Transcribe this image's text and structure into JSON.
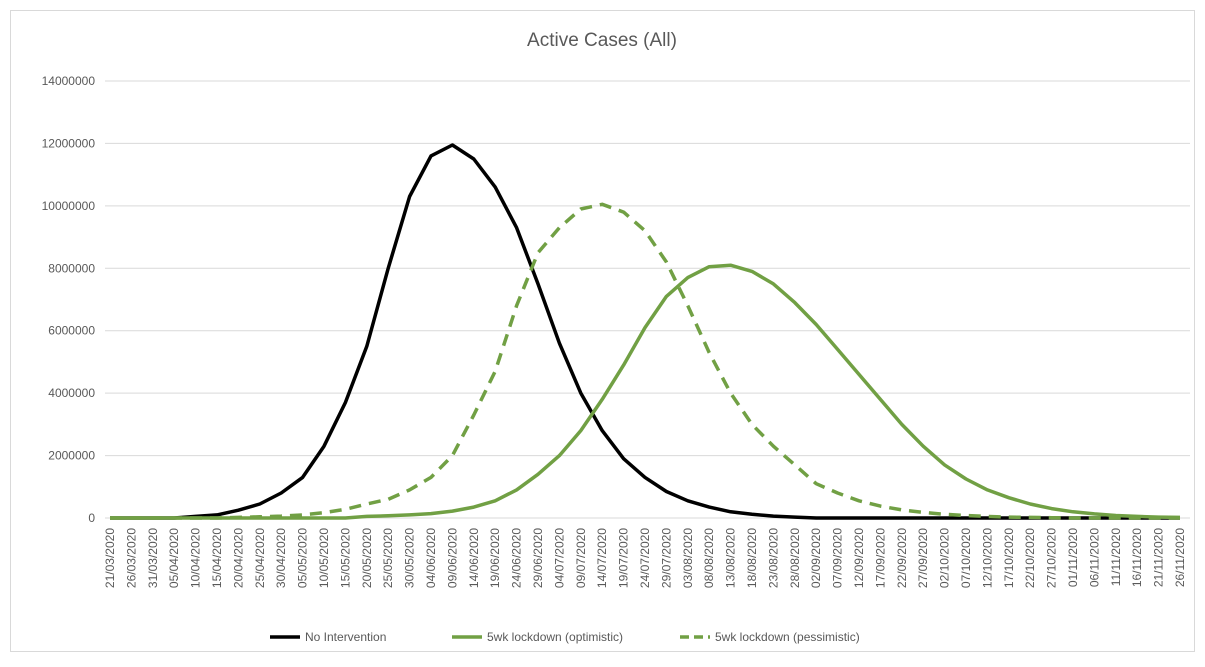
{
  "chart_data": {
    "type": "line",
    "title": "Active Cases (All)",
    "categories": [
      "21/03/2020",
      "26/03/2020",
      "31/03/2020",
      "05/04/2020",
      "10/04/2020",
      "15/04/2020",
      "20/04/2020",
      "25/04/2020",
      "30/04/2020",
      "05/05/2020",
      "10/05/2020",
      "15/05/2020",
      "20/05/2020",
      "25/05/2020",
      "30/05/2020",
      "04/06/2020",
      "09/06/2020",
      "14/06/2020",
      "19/06/2020",
      "24/06/2020",
      "29/06/2020",
      "04/07/2020",
      "09/07/2020",
      "14/07/2020",
      "19/07/2020",
      "24/07/2020",
      "29/07/2020",
      "03/08/2020",
      "08/08/2020",
      "13/08/2020",
      "18/08/2020",
      "23/08/2020",
      "28/08/2020",
      "02/09/2020",
      "07/09/2020",
      "12/09/2020",
      "17/09/2020",
      "22/09/2020",
      "27/09/2020",
      "02/10/2020",
      "07/10/2020",
      "12/10/2020",
      "17/10/2020",
      "22/10/2020",
      "27/10/2020",
      "01/11/2020",
      "06/11/2020",
      "11/11/2020",
      "16/11/2020",
      "21/11/2020",
      "26/11/2020"
    ],
    "series": [
      {
        "name": "No Intervention",
        "color": "#000000",
        "style": "solid",
        "values": [
          0,
          0,
          0,
          0,
          50000,
          100000,
          250000,
          450000,
          800000,
          1300000,
          2300000,
          3700000,
          5500000,
          8000000,
          10300000,
          11600000,
          11950000,
          11500000,
          10600000,
          9300000,
          7500000,
          5600000,
          4000000,
          2800000,
          1900000,
          1300000,
          850000,
          550000,
          350000,
          200000,
          120000,
          60000,
          30000,
          0,
          0,
          0,
          0,
          0,
          0,
          0,
          0,
          0,
          0,
          0,
          0,
          0,
          0,
          0,
          0,
          0,
          0
        ]
      },
      {
        "name": "5wk lockdown (optimistic)",
        "color": "#71a044",
        "style": "solid",
        "values": [
          0,
          0,
          0,
          0,
          0,
          0,
          0,
          0,
          0,
          0,
          0,
          0,
          50000,
          70000,
          100000,
          140000,
          220000,
          350000,
          550000,
          900000,
          1400000,
          2000000,
          2800000,
          3800000,
          4900000,
          6100000,
          7100000,
          7700000,
          8050000,
          8100000,
          7900000,
          7500000,
          6900000,
          6200000,
          5400000,
          4600000,
          3800000,
          3000000,
          2300000,
          1700000,
          1250000,
          900000,
          650000,
          450000,
          300000,
          200000,
          130000,
          80000,
          50000,
          30000,
          20000
        ]
      },
      {
        "name": "5wk lockdown (pessimistic)",
        "color": "#71a044",
        "style": "dashed",
        "values": [
          0,
          0,
          0,
          0,
          0,
          0,
          20000,
          40000,
          60000,
          100000,
          170000,
          280000,
          450000,
          600000,
          900000,
          1300000,
          2000000,
          3300000,
          4700000,
          6800000,
          8500000,
          9300000,
          9900000,
          10050000,
          9800000,
          9200000,
          8200000,
          6800000,
          5300000,
          4000000,
          3000000,
          2300000,
          1700000,
          1100000,
          800000,
          550000,
          380000,
          260000,
          180000,
          120000,
          80000,
          50000,
          30000,
          20000,
          10000,
          0,
          0,
          0,
          0,
          0,
          0
        ]
      }
    ],
    "ylim": [
      0,
      14000000
    ],
    "yticks": [
      0,
      2000000,
      4000000,
      6000000,
      8000000,
      10000000,
      12000000,
      14000000
    ],
    "grid": true,
    "legend": "bottom"
  }
}
